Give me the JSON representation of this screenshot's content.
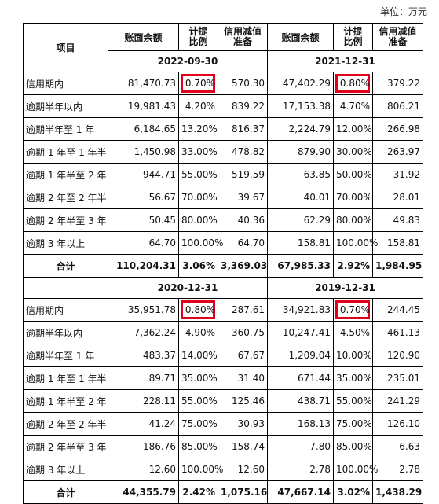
{
  "unit_label": "单位：万元",
  "headers": {
    "item": "项目",
    "balance": "账面余额",
    "ratio_line1": "计提",
    "ratio_line2": "比例",
    "reserve_line1": "信用减值",
    "reserve_line2": "准备"
  },
  "accent_color": "#e0001b",
  "sections": [
    {
      "left_date": "2022-09-30",
      "right_date": "2021-12-31",
      "rows": [
        {
          "label": "信用期内",
          "lb": "81,470.73",
          "lr": "0.70%",
          "lp": "570.30",
          "rb": "47,402.29",
          "rr": "0.80%",
          "rp": "379.22"
        },
        {
          "label": "逾期半年以内",
          "lb": "19,981.43",
          "lr": "4.20%",
          "lp": "839.22",
          "rb": "17,153.38",
          "rr": "4.70%",
          "rp": "806.21"
        },
        {
          "label": "逾期半年至 1 年",
          "lb": "6,184.65",
          "lr": "13.20%",
          "lp": "816.37",
          "rb": "2,224.79",
          "rr": "12.00%",
          "rp": "266.98"
        },
        {
          "label": "逾期 1 年至 1 年半",
          "lb": "1,450.98",
          "lr": "33.00%",
          "lp": "478.82",
          "rb": "879.90",
          "rr": "30.00%",
          "rp": "263.97"
        },
        {
          "label": "逾期 1 年半至 2 年",
          "lb": "944.71",
          "lr": "55.00%",
          "lp": "519.59",
          "rb": "63.85",
          "rr": "50.00%",
          "rp": "31.92"
        },
        {
          "label": "逾期 2 年至 2 年半",
          "lb": "56.67",
          "lr": "70.00%",
          "lp": "39.67",
          "rb": "40.01",
          "rr": "70.00%",
          "rp": "28.01"
        },
        {
          "label": "逾期 2 年半至 3 年",
          "lb": "50.45",
          "lr": "80.00%",
          "lp": "40.36",
          "rb": "62.29",
          "rr": "80.00%",
          "rp": "49.83"
        },
        {
          "label": "逾期 3 年以上",
          "lb": "64.70",
          "lr": "100.00%",
          "lp": "64.70",
          "rb": "158.81",
          "rr": "100.00%",
          "rp": "158.81"
        }
      ],
      "total": {
        "label": "合计",
        "lb": "110,204.31",
        "lr": "3.06%",
        "lp": "3,369.03",
        "rb": "67,985.33",
        "rr": "2.92%",
        "rp": "1,984.95"
      }
    },
    {
      "left_date": "2020-12-31",
      "right_date": "2019-12-31",
      "rows": [
        {
          "label": "信用期内",
          "lb": "35,951.78",
          "lr": "0.80%",
          "lp": "287.61",
          "rb": "34,921.83",
          "rr": "0.70%",
          "rp": "244.45"
        },
        {
          "label": "逾期半年以内",
          "lb": "7,362.24",
          "lr": "4.90%",
          "lp": "360.75",
          "rb": "10,247.41",
          "rr": "4.50%",
          "rp": "461.13"
        },
        {
          "label": "逾期半年至 1 年",
          "lb": "483.37",
          "lr": "14.00%",
          "lp": "67.67",
          "rb": "1,209.04",
          "rr": "10.00%",
          "rp": "120.90"
        },
        {
          "label": "逾期 1 年至 1 年半",
          "lb": "89.71",
          "lr": "35.00%",
          "lp": "31.40",
          "rb": "671.44",
          "rr": "35.00%",
          "rp": "235.01"
        },
        {
          "label": "逾期 1 年半至 2 年",
          "lb": "228.11",
          "lr": "55.00%",
          "lp": "125.46",
          "rb": "438.71",
          "rr": "55.00%",
          "rp": "241.29"
        },
        {
          "label": "逾期 2 年至 2 年半",
          "lb": "41.24",
          "lr": "75.00%",
          "lp": "30.93",
          "rb": "168.13",
          "rr": "75.00%",
          "rp": "126.10"
        },
        {
          "label": "逾期 2 年半至 3 年",
          "lb": "186.76",
          "lr": "85.00%",
          "lp": "158.74",
          "rb": "7.80",
          "rr": "85.00%",
          "rp": "6.63"
        },
        {
          "label": "逾期 3 年以上",
          "lb": "12.60",
          "lr": "100.00%",
          "lp": "12.60",
          "rb": "2.78",
          "rr": "100.00%",
          "rp": "2.78"
        }
      ],
      "total": {
        "label": "合计",
        "lb": "44,355.79",
        "lr": "2.42%",
        "lp": "1,075.16",
        "rb": "47,667.14",
        "rr": "3.02%",
        "rp": "1,438.29"
      }
    }
  ]
}
